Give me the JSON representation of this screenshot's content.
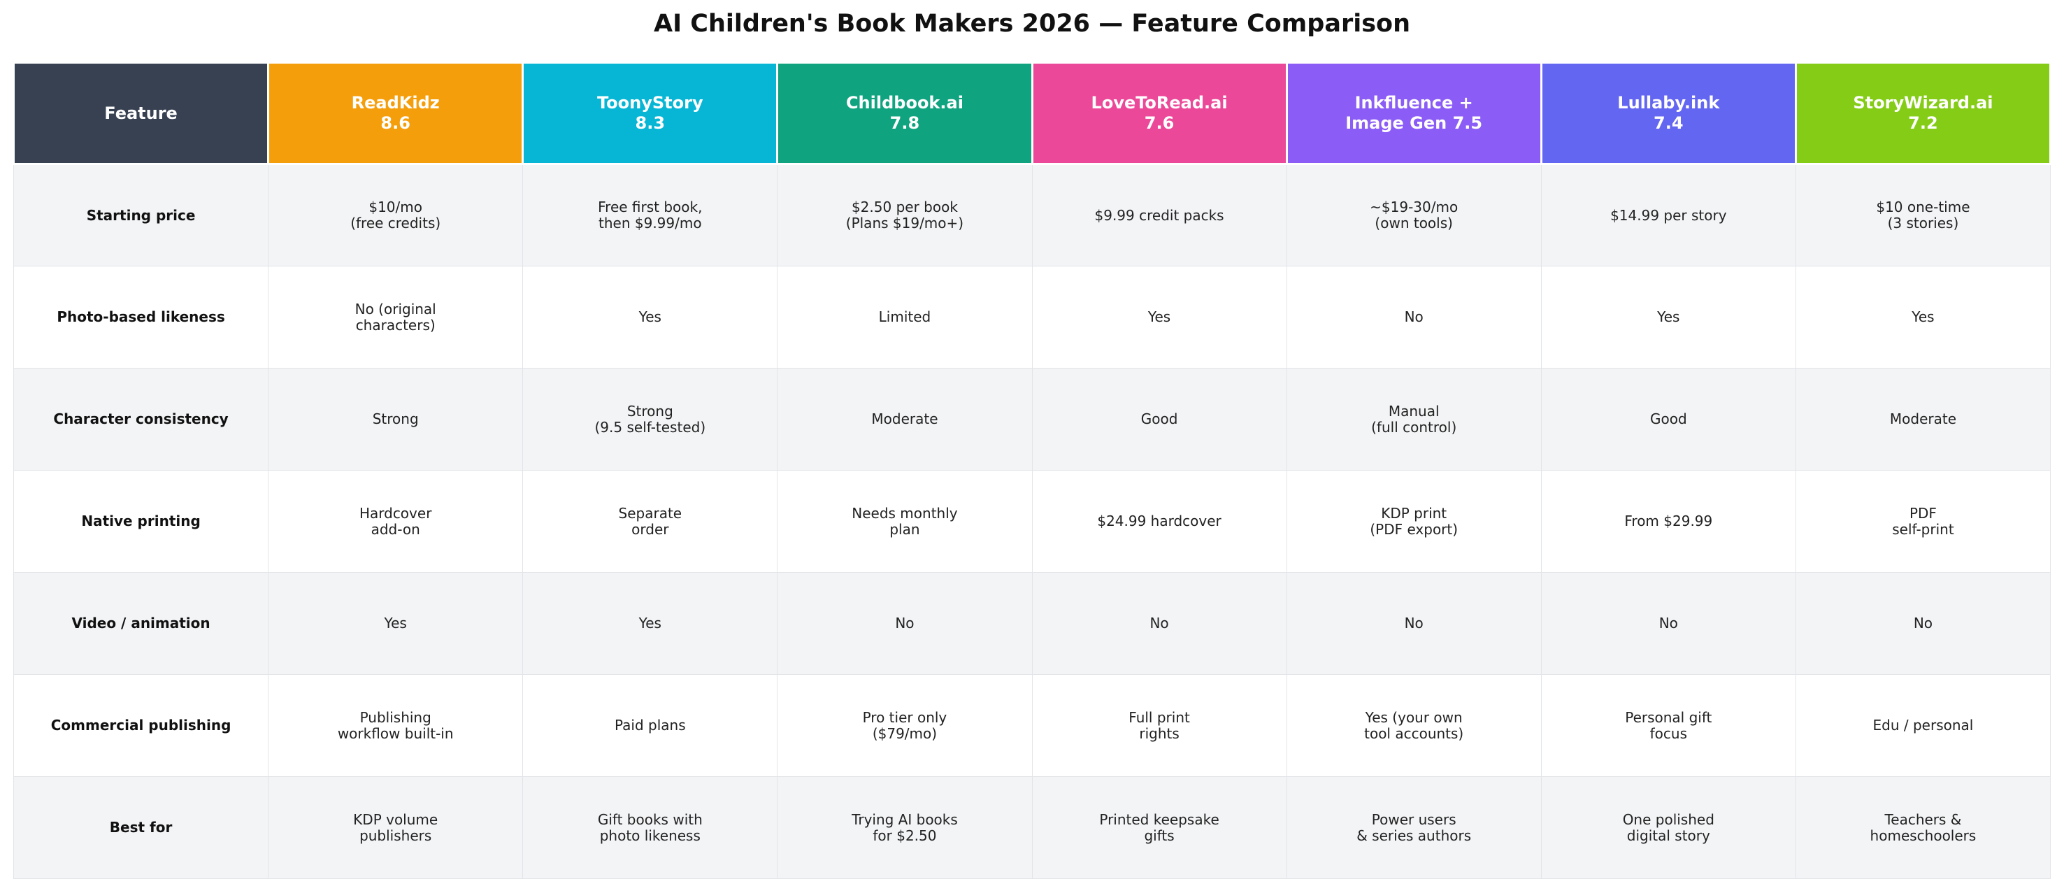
{
  "title": "AI Children's Book Makers 2026 — Feature Comparison",
  "chart_data": {
    "type": "table",
    "columns": [
      {
        "label": "Feature",
        "color": "#374151"
      },
      {
        "label": "ReadKidz\n8.6",
        "color": "#f59e0b"
      },
      {
        "label": "ToonyStory\n8.3",
        "color": "#06b6d4"
      },
      {
        "label": "Childbook.ai\n7.8",
        "color": "#10a37f"
      },
      {
        "label": "LoveToRead.ai\n7.6",
        "color": "#ec4899"
      },
      {
        "label": "Inkfluence +\nImage Gen 7.5",
        "color": "#8b5cf6"
      },
      {
        "label": "Lullaby.ink\n7.4",
        "color": "#6366f1"
      },
      {
        "label": "StoryWizard.ai\n7.2",
        "color": "#84cc16"
      }
    ],
    "rows": [
      {
        "feature": "Starting price",
        "cells": [
          "$10/mo\n(free credits)",
          "Free first book,\nthen $9.99/mo",
          "$2.50 per book\n(Plans $19/mo+)",
          "$9.99 credit packs",
          "~$19-30/mo\n(own tools)",
          "$14.99 per story",
          "$10 one-time\n(3 stories)"
        ]
      },
      {
        "feature": "Photo-based likeness",
        "cells": [
          "No (original\ncharacters)",
          "Yes",
          "Limited",
          "Yes",
          "No",
          "Yes",
          "Yes"
        ]
      },
      {
        "feature": "Character consistency",
        "cells": [
          "Strong",
          "Strong\n(9.5 self-tested)",
          "Moderate",
          "Good",
          "Manual\n(full control)",
          "Good",
          "Moderate"
        ]
      },
      {
        "feature": "Native printing",
        "cells": [
          "Hardcover\nadd-on",
          "Separate\norder",
          "Needs monthly\nplan",
          "$24.99 hardcover",
          "KDP print\n(PDF export)",
          "From $29.99",
          "PDF\nself-print"
        ]
      },
      {
        "feature": "Video / animation",
        "cells": [
          "Yes",
          "Yes",
          "No",
          "No",
          "No",
          "No",
          "No"
        ]
      },
      {
        "feature": "Commercial publishing",
        "cells": [
          "Publishing\nworkflow built-in",
          "Paid plans",
          "Pro tier only\n($79/mo)",
          "Full print\nrights",
          "Yes (your own\ntool accounts)",
          "Personal gift\nfocus",
          "Edu / personal"
        ]
      },
      {
        "feature": "Best for",
        "cells": [
          "KDP volume\npublishers",
          "Gift books with\nphoto likeness",
          "Trying AI books\nfor $2.50",
          "Printed keepsake\ngifts",
          "Power users\n& series authors",
          "One polished\ndigital story",
          "Teachers &\nhomeschoolers"
        ]
      }
    ]
  }
}
